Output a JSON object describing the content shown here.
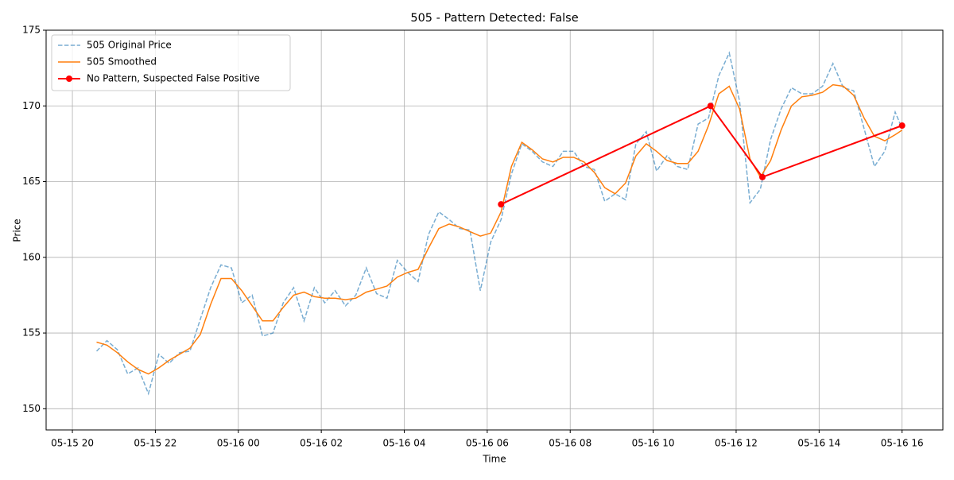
{
  "chart_data": {
    "type": "line",
    "title": "505 - Pattern Detected: False",
    "x_label": "Time",
    "y_label": "Price",
    "x": [
      "05-15 20:35",
      "05-15 20:50",
      "05-15 21:05",
      "05-15 21:20",
      "05-15 21:35",
      "05-15 21:50",
      "05-15 22:05",
      "05-15 22:20",
      "05-15 22:35",
      "05-15 22:50",
      "05-15 23:05",
      "05-15 23:20",
      "05-15 23:35",
      "05-15 23:50",
      "05-16 00:05",
      "05-16 00:20",
      "05-16 00:35",
      "05-16 00:50",
      "05-16 01:05",
      "05-16 01:20",
      "05-16 01:35",
      "05-16 01:50",
      "05-16 02:05",
      "05-16 02:20",
      "05-16 02:35",
      "05-16 02:50",
      "05-16 03:05",
      "05-16 03:20",
      "05-16 03:35",
      "05-16 03:50",
      "05-16 04:05",
      "05-16 04:20",
      "05-16 04:35",
      "05-16 04:50",
      "05-16 05:05",
      "05-16 05:20",
      "05-16 05:35",
      "05-16 05:50",
      "05-16 06:05",
      "05-16 06:20",
      "05-16 06:35",
      "05-16 06:50",
      "05-16 07:05",
      "05-16 07:20",
      "05-16 07:35",
      "05-16 07:50",
      "05-16 08:05",
      "05-16 08:20",
      "05-16 08:35",
      "05-16 08:50",
      "05-16 09:05",
      "05-16 09:20",
      "05-16 09:35",
      "05-16 09:50",
      "05-16 10:05",
      "05-16 10:20",
      "05-16 10:35",
      "05-16 10:50",
      "05-16 11:05",
      "05-16 11:20",
      "05-16 11:35",
      "05-16 11:50",
      "05-16 12:05",
      "05-16 12:20",
      "05-16 12:35",
      "05-16 12:50",
      "05-16 13:05",
      "05-16 13:20",
      "05-16 13:35",
      "05-16 13:50",
      "05-16 14:05",
      "05-16 14:20",
      "05-16 14:35",
      "05-16 14:50",
      "05-16 15:05",
      "05-16 15:20",
      "05-16 15:35",
      "05-16 15:50",
      "05-16 16:00"
    ],
    "series": [
      {
        "name": "505 Original Price",
        "color": "#1f77b4",
        "dashed": true,
        "values": [
          153.8,
          154.5,
          153.9,
          152.3,
          152.7,
          151.0,
          153.6,
          153.0,
          153.7,
          153.8,
          155.9,
          158.0,
          159.5,
          159.3,
          157.0,
          157.5,
          154.8,
          155.0,
          157.0,
          158.0,
          155.8,
          158.0,
          157.0,
          157.8,
          156.8,
          157.5,
          159.3,
          157.6,
          157.3,
          159.8,
          159.0,
          158.4,
          161.5,
          163.0,
          162.5,
          161.9,
          161.8,
          157.8,
          161.0,
          162.5,
          165.5,
          167.5,
          167.0,
          166.3,
          166.0,
          167.0,
          167.0,
          166.0,
          165.8,
          163.7,
          164.2,
          163.8,
          167.5,
          168.3,
          165.7,
          166.7,
          166.0,
          165.8,
          168.8,
          169.2,
          172.0,
          173.5,
          170.3,
          163.6,
          164.5,
          167.8,
          169.8,
          171.2,
          170.8,
          170.8,
          171.3,
          172.8,
          171.2,
          171.0,
          168.5,
          166.0,
          167.0,
          169.6,
          168.5
        ]
      },
      {
        "name": "505 Smoothed",
        "color": "#ff7f0e",
        "values": [
          154.4,
          154.2,
          153.7,
          153.1,
          152.6,
          152.3,
          152.7,
          153.2,
          153.6,
          154.0,
          154.9,
          156.9,
          158.6,
          158.6,
          157.8,
          156.8,
          155.8,
          155.8,
          156.7,
          157.5,
          157.7,
          157.4,
          157.3,
          157.3,
          157.2,
          157.3,
          157.7,
          157.9,
          158.1,
          158.7,
          159.0,
          159.2,
          160.6,
          161.9,
          162.2,
          162.0,
          161.7,
          161.4,
          161.6,
          163.0,
          166.0,
          167.6,
          167.1,
          166.5,
          166.3,
          166.6,
          166.6,
          166.3,
          165.6,
          164.6,
          164.2,
          164.9,
          166.7,
          167.5,
          167.0,
          166.4,
          166.2,
          166.2,
          167.0,
          168.7,
          170.8,
          171.3,
          169.8,
          166.5,
          165.3,
          166.4,
          168.4,
          170.0,
          170.6,
          170.7,
          170.9,
          171.4,
          171.3,
          170.7,
          169.2,
          168.0,
          167.7,
          168.1,
          168.4
        ]
      },
      {
        "name": "No Pattern, Suspected False Positive",
        "color": "#ff0000",
        "markers": true,
        "x": [
          "05-16 06:20",
          "05-16 11:23",
          "05-16 12:38",
          "05-16 16:00"
        ],
        "values": [
          163.5,
          170.0,
          165.3,
          168.7
        ]
      }
    ],
    "xlim": [
      "05-15 19:22",
      "05-16 16:59"
    ],
    "xticks": [
      {
        "value": "05-15 20:00",
        "label": "05-15 20"
      },
      {
        "value": "05-15 22:00",
        "label": "05-15 22"
      },
      {
        "value": "05-16 00:00",
        "label": "05-16 00"
      },
      {
        "value": "05-16 02:00",
        "label": "05-16 02"
      },
      {
        "value": "05-16 04:00",
        "label": "05-16 04"
      },
      {
        "value": "05-16 06:00",
        "label": "05-16 06"
      },
      {
        "value": "05-16 08:00",
        "label": "05-16 08"
      },
      {
        "value": "05-16 10:00",
        "label": "05-16 10"
      },
      {
        "value": "05-16 12:00",
        "label": "05-16 12"
      },
      {
        "value": "05-16 14:00",
        "label": "05-16 14"
      },
      {
        "value": "05-16 16:00",
        "label": "05-16 16"
      }
    ],
    "ylim": [
      148.6,
      175
    ],
    "yticks": [
      150,
      155,
      160,
      165,
      170,
      175
    ],
    "grid": true,
    "legend": "upper left"
  }
}
